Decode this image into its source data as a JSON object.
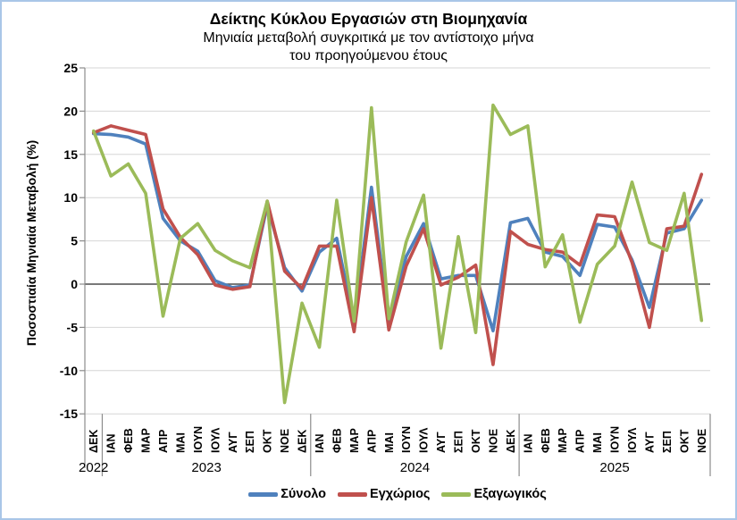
{
  "window": {
    "border_color": "#A9C6E8",
    "background": "#FFFFFF"
  },
  "title": {
    "line1": "Δείκτης Κύκλου Εργασιών στη Βιομηχανία",
    "line2": "Μηνιαία μεταβολή συγκριτικά με τον αντίστοιχο μήνα",
    "line3": "του προηγούμενου έτους"
  },
  "y_axis": {
    "title": "Ποσοστιαία Μηνιαία Μεταβολή (%)",
    "ticks": [
      25,
      20,
      15,
      10,
      5,
      0,
      -5,
      -10,
      -15
    ],
    "min": -15,
    "max": 25
  },
  "x_axis": {
    "year_groups": [
      {
        "label": "2022",
        "span": 1
      },
      {
        "label": "2023",
        "span": 12
      },
      {
        "label": "2024",
        "span": 12
      },
      {
        "label": "2025",
        "span": 11
      }
    ]
  },
  "legend": {
    "items": [
      {
        "label": "Σύνολο",
        "color": "#4F81BD"
      },
      {
        "label": "Εγχώριος",
        "color": "#C0504D"
      },
      {
        "label": "Εξαγωγικός",
        "color": "#9BBB59"
      }
    ]
  },
  "colors": {
    "gridline": "#D6D6D6",
    "zero_line": "#4D4D4D",
    "axis": "#8C8C8C",
    "text": "#000000"
  },
  "chart_data": {
    "type": "line",
    "title": "Δείκτης Κύκλου Εργασιών στη Βιομηχανία",
    "subtitle": "Μηνιαία μεταβολή συγκριτικά με τον αντίστοιχο μήνα του προηγούμενου έτους",
    "xlabel": "",
    "ylabel": "Ποσοστιαία Μηνιαία Μεταβολή (%)",
    "ylim": [
      -15,
      25
    ],
    "grid": true,
    "legend_position": "bottom",
    "categories": [
      "ΔΕΚ",
      "ΙΑΝ",
      "ΦΕΒ",
      "ΜΑΡ",
      "ΑΠΡ",
      "ΜΑΙ",
      "ΙΟΥΝ",
      "ΙΟΥΛ",
      "ΑΥΓ",
      "ΣΕΠ",
      "ΟΚΤ",
      "ΝΟΕ",
      "ΔΕΚ",
      "ΙΑΝ",
      "ΦΕΒ",
      "ΜΑΡ",
      "ΑΠΡ",
      "ΜΑΙ",
      "ΙΟΥΝ",
      "ΙΟΥΛ",
      "ΑΥΓ",
      "ΣΕΠ",
      "ΟΚΤ",
      "ΝΟΕ",
      "ΔΕΚ",
      "ΙΑΝ",
      "ΦΕΒ",
      "ΜΑΡ",
      "ΑΠΡ",
      "ΜΑΙ",
      "ΙΟΥΝ",
      "ΙΟΥΛ",
      "ΑΥΓ",
      "ΣΕΠ",
      "ΟΚΤ",
      "ΝΟΕ"
    ],
    "category_years": [
      "2022",
      "2023",
      "2023",
      "2023",
      "2023",
      "2023",
      "2023",
      "2023",
      "2023",
      "2023",
      "2023",
      "2023",
      "2023",
      "2024",
      "2024",
      "2024",
      "2024",
      "2024",
      "2024",
      "2024",
      "2024",
      "2024",
      "2024",
      "2024",
      "2024",
      "2025",
      "2025",
      "2025",
      "2025",
      "2025",
      "2025",
      "2025",
      "2025",
      "2025",
      "2025",
      "2025"
    ],
    "series": [
      {
        "name": "Σύνολο",
        "color": "#4F81BD",
        "values": [
          17.4,
          17.3,
          17.0,
          16.2,
          7.6,
          5.0,
          3.8,
          0.4,
          -0.4,
          -0.1,
          9.1,
          1.9,
          -0.8,
          3.7,
          5.3,
          -4.4,
          11.2,
          -4.5,
          3.2,
          7.0,
          0.6,
          1.0,
          1.0,
          -5.4,
          7.1,
          7.6,
          3.7,
          3.2,
          1.0,
          6.9,
          6.6,
          2.8,
          -2.7,
          5.9,
          6.4,
          9.7
        ]
      },
      {
        "name": "Εγχώριος",
        "color": "#C0504D",
        "values": [
          17.5,
          18.3,
          17.8,
          17.3,
          8.7,
          5.4,
          3.4,
          -0.1,
          -0.6,
          -0.3,
          9.6,
          1.5,
          -0.5,
          4.4,
          4.4,
          -5.5,
          10.0,
          -5.3,
          2.1,
          6.4,
          -0.1,
          0.8,
          2.2,
          -9.3,
          6.1,
          4.6,
          4.0,
          3.7,
          2.2,
          8.0,
          7.8,
          2.5,
          -5.0,
          6.4,
          6.7,
          12.7
        ]
      },
      {
        "name": "Εξαγωγικός",
        "color": "#9BBB59",
        "values": [
          17.7,
          12.5,
          13.9,
          10.5,
          -3.7,
          5.3,
          7.0,
          3.9,
          2.7,
          1.9,
          9.6,
          -13.7,
          -2.2,
          -7.3,
          9.7,
          -4.3,
          20.4,
          -4.0,
          4.9,
          10.3,
          -7.4,
          5.5,
          -5.6,
          20.7,
          17.3,
          18.3,
          2.0,
          5.7,
          -4.4,
          2.3,
          4.4,
          11.8,
          4.8,
          3.9,
          10.5,
          -4.2
        ]
      }
    ]
  }
}
